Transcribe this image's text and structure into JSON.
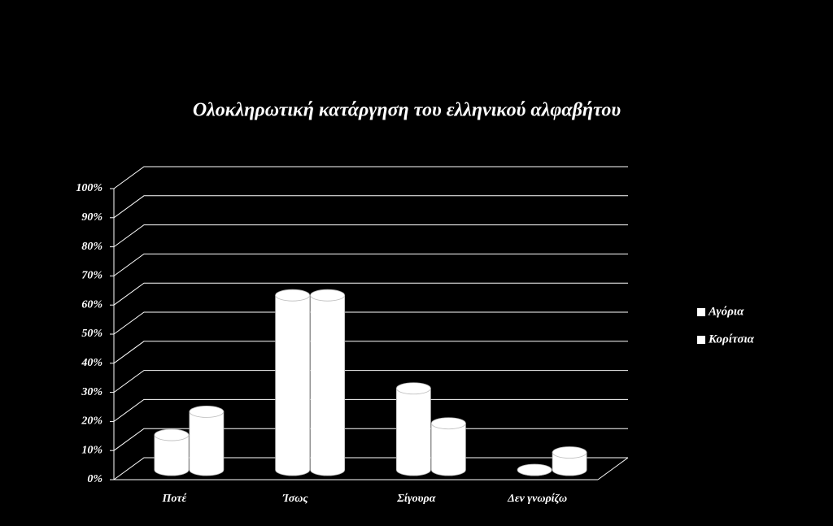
{
  "chart_data": {
    "type": "bar3d",
    "title": "Ολοκληρωτική κατάργηση του ελληνικού αλφαβήτου",
    "categories": [
      "Ποτέ",
      "Ίσως",
      "Σίγουρα",
      "Δεν γνωρίζω"
    ],
    "series": [
      {
        "name": "Αγόρια",
        "color": "#ffffff",
        "values": [
          12,
          60,
          28,
          0
        ]
      },
      {
        "name": "Κορίτσια",
        "color": "#ffffff",
        "values": [
          20,
          60,
          16,
          6
        ]
      }
    ],
    "ylim": [
      0,
      100
    ],
    "yticks": [
      {
        "value": 0,
        "label": "0%"
      },
      {
        "value": 10,
        "label": "10%"
      },
      {
        "value": 20,
        "label": "20%"
      },
      {
        "value": 30,
        "label": "30%"
      },
      {
        "value": 40,
        "label": "40%"
      },
      {
        "value": 50,
        "label": "50%"
      },
      {
        "value": 60,
        "label": "60%"
      },
      {
        "value": 70,
        "label": "70%"
      },
      {
        "value": 80,
        "label": "80%"
      },
      {
        "value": 90,
        "label": "90%"
      },
      {
        "value": 100,
        "label": "100%"
      }
    ],
    "grid": true
  }
}
